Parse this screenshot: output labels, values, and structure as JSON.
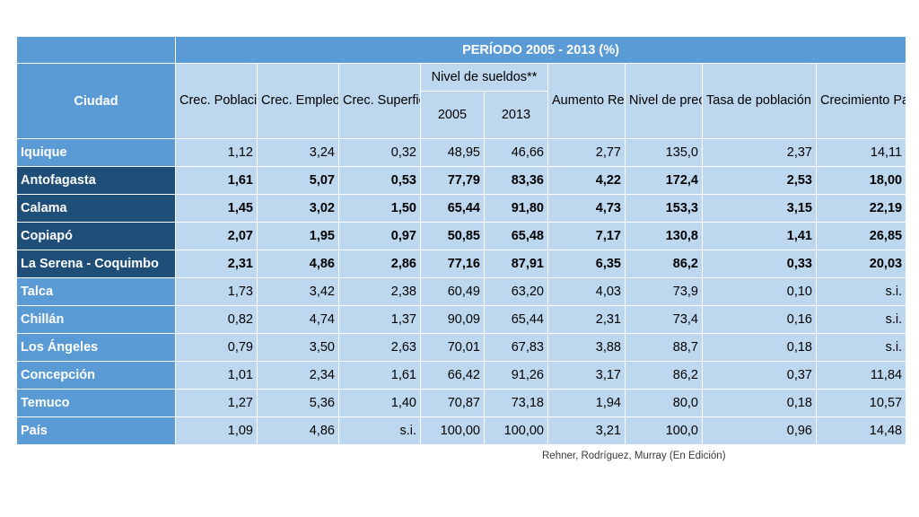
{
  "table": {
    "super_header": "PERÍODO 2005 - 2013 (%)",
    "city_header": "Ciudad",
    "headers": {
      "poblacional": "Crec. Poblacional",
      "empleo": "Crec. Empleo",
      "superficie": "Crec. Superficie urbana*",
      "sueldos": "Nivel de sueldos**",
      "sueldos_2005": "2005",
      "sueldos_2013": "2013",
      "remuneraciones": "Aumento Remunera-ciones",
      "precios": "Nivel de precios+",
      "inmigrante": "Tasa de población Inmigrante",
      "pasajeros": "Crecimiento Pasajeros aéreos"
    },
    "rows": [
      {
        "city": "Iquique",
        "values": [
          "1,12",
          "3,24",
          "0,32",
          "48,95",
          "46,66",
          "2,77",
          "135,0",
          "2,37",
          "14,11"
        ]
      },
      {
        "city": "Antofagasta",
        "values": [
          "1,61",
          "5,07",
          "0,53",
          "77,79",
          "83,36",
          "4,22",
          "172,4",
          "2,53",
          "18,00"
        ]
      },
      {
        "city": "Calama",
        "values": [
          "1,45",
          "3,02",
          "1,50",
          "65,44",
          "91,80",
          "4,73",
          "153,3",
          "3,15",
          "22,19"
        ]
      },
      {
        "city": "Copiapó",
        "values": [
          "2,07",
          "1,95",
          "0,97",
          "50,85",
          "65,48",
          "7,17",
          "130,8",
          "1,41",
          "26,85"
        ]
      },
      {
        "city": "La Serena - Coquimbo",
        "values": [
          "2,31",
          "4,86",
          "2,86",
          "77,16",
          "87,91",
          "6,35",
          "86,2",
          "0,33",
          "20,03"
        ]
      },
      {
        "city": "Talca",
        "values": [
          "1,73",
          "3,42",
          "2,38",
          "60,49",
          "63,20",
          "4,03",
          "73,9",
          "0,10",
          "s.i."
        ]
      },
      {
        "city": "Chillán",
        "values": [
          "0,82",
          "4,74",
          "1,37",
          "90,09",
          "65,44",
          "2,31",
          "73,4",
          "0,16",
          "s.i."
        ]
      },
      {
        "city": "Los Ángeles",
        "values": [
          "0,79",
          "3,50",
          "2,63",
          "70,01",
          "67,83",
          "3,88",
          "88,7",
          "0,18",
          "s.i."
        ]
      },
      {
        "city": "Concepción",
        "values": [
          "1,01",
          "2,34",
          "1,61",
          "66,42",
          "91,26",
          "3,17",
          "86,2",
          "0,37",
          "11,84"
        ]
      },
      {
        "city": "Temuco",
        "values": [
          "1,27",
          "5,36",
          "1,40",
          "70,87",
          "73,18",
          "1,94",
          "80,0",
          "0,18",
          "10,57"
        ]
      },
      {
        "city": "País",
        "values": [
          "1,09",
          "4,86",
          "s.i.",
          "100,00",
          "100,00",
          "3,21",
          "100,0",
          "0,96",
          "14,48"
        ]
      }
    ]
  },
  "source": "Rehner, Rodríguez, Murray (En Edición)",
  "colors": {
    "header_blue": "#5b9bd5",
    "dark_blue": "#1f4e79",
    "cell_light_blue": "#bdd7ee"
  }
}
